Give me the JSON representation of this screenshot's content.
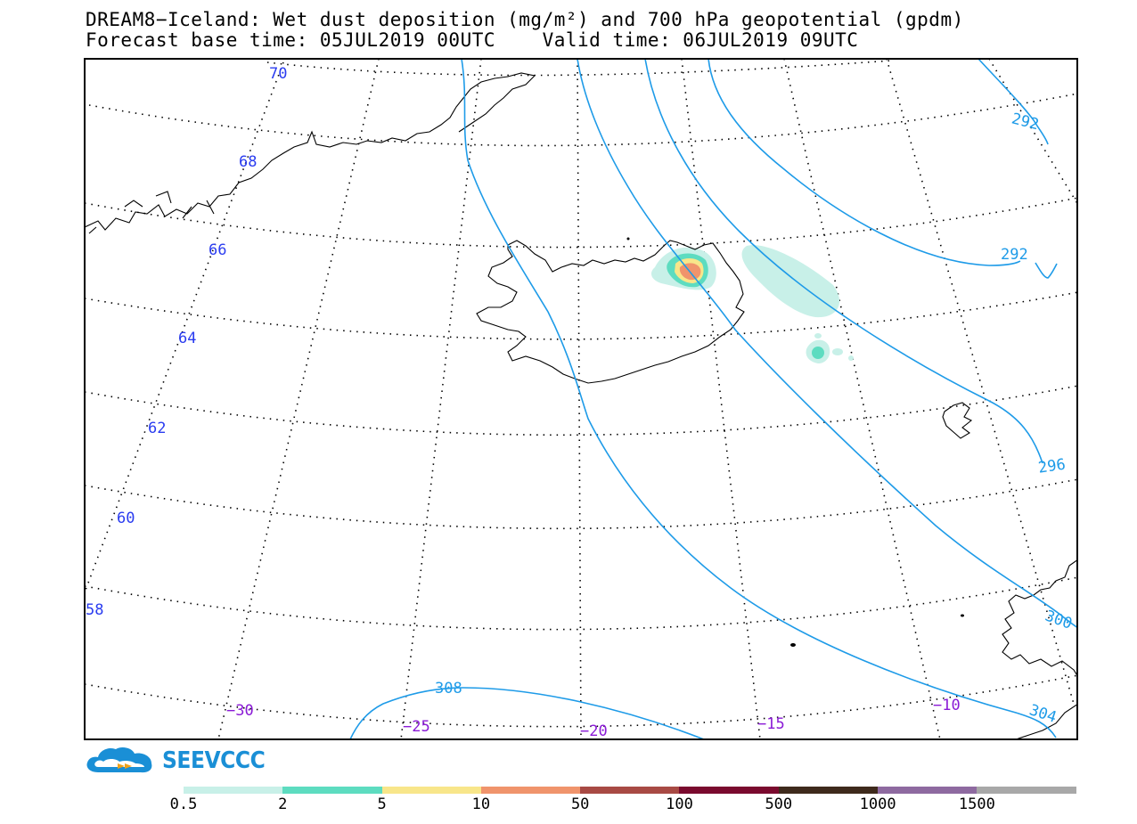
{
  "title_line1": "DREAM8−Iceland: Wet dust deposition (mg/m²) and 700 hPa geopotential (gpdm)",
  "title_line2": "Forecast base time: 05JUL2019 00UTC    Valid time: 06JUL2019 09UTC",
  "logo_text": "SEEVCCC",
  "latitude_labels": [
    "70",
    "68",
    "66",
    "64",
    "62",
    "60",
    "58"
  ],
  "longitude_labels": [
    "−30",
    "−25",
    "−20",
    "−15",
    "−10"
  ],
  "contour_labels": [
    "292",
    "292",
    "296",
    "308",
    "304",
    "300"
  ],
  "colorbar": {
    "labels": [
      "0.5",
      "2",
      "5",
      "10",
      "50",
      "100",
      "500",
      "1000",
      "1500"
    ],
    "colors": [
      "#c8f0e8",
      "#5ddcc0",
      "#f8e68a",
      "#f0946c",
      "#a84a44",
      "#7a0a2e",
      "#3e2a1c",
      "#8e6aa0",
      "#a8a8a8"
    ]
  },
  "colors": {
    "contour": "#1e9be8",
    "latitude_label": "#2a3cf0",
    "longitude_label": "#8a1ad6",
    "logo": "#1a8fd6"
  }
}
